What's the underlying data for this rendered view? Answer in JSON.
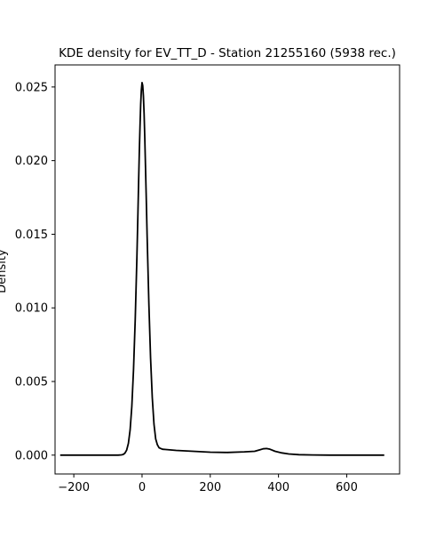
{
  "chart_data": {
    "type": "line",
    "title": "KDE density for EV_TT_D - Station 21255160 (5938 rec.)",
    "xlabel": "",
    "ylabel": "Density",
    "xlim": [
      -255,
      755
    ],
    "ylim": [
      -0.00128,
      0.0265
    ],
    "xticks": [
      -200,
      0,
      200,
      400,
      600
    ],
    "yticks": [
      0.0,
      0.005,
      0.01,
      0.015,
      0.02,
      0.025
    ],
    "xtick_labels": [
      "−200",
      "0",
      "200",
      "400",
      "600"
    ],
    "ytick_labels": [
      "0.000",
      "0.005",
      "0.010",
      "0.015",
      "0.020",
      "0.025"
    ],
    "grid": false,
    "legend": "none",
    "series": [
      {
        "color": "#000000",
        "x": [
          -240,
          -150,
          -100,
          -70,
          -60,
          -55,
          -50,
          -45,
          -40,
          -35,
          -30,
          -25,
          -20,
          -15,
          -12,
          -10,
          -8,
          -6,
          -4,
          -2,
          0,
          2,
          4,
          6,
          8,
          10,
          12,
          15,
          20,
          25,
          30,
          35,
          40,
          45,
          50,
          60,
          70,
          100,
          150,
          200,
          250,
          300,
          330,
          345,
          355,
          365,
          375,
          390,
          410,
          430,
          460,
          500,
          550,
          600,
          650,
          710
        ],
        "y": [
          0.0,
          0.0,
          0.0,
          0.0,
          2e-05,
          5e-05,
          0.00014,
          0.00035,
          0.0008,
          0.0017,
          0.0033,
          0.0058,
          0.0092,
          0.0135,
          0.0165,
          0.0186,
          0.0206,
          0.0223,
          0.0238,
          0.0248,
          0.0253,
          0.0251,
          0.0244,
          0.0232,
          0.0216,
          0.0197,
          0.0178,
          0.0148,
          0.0103,
          0.0066,
          0.0039,
          0.0021,
          0.0011,
          0.0007,
          0.0005,
          0.0004,
          0.00038,
          0.00032,
          0.00026,
          0.0002,
          0.00018,
          0.00022,
          0.00026,
          0.00036,
          0.00043,
          0.00045,
          0.0004,
          0.00026,
          0.00015,
          8e-05,
          3e-05,
          1e-05,
          0.0,
          0.0,
          0.0,
          0.0
        ]
      }
    ]
  }
}
